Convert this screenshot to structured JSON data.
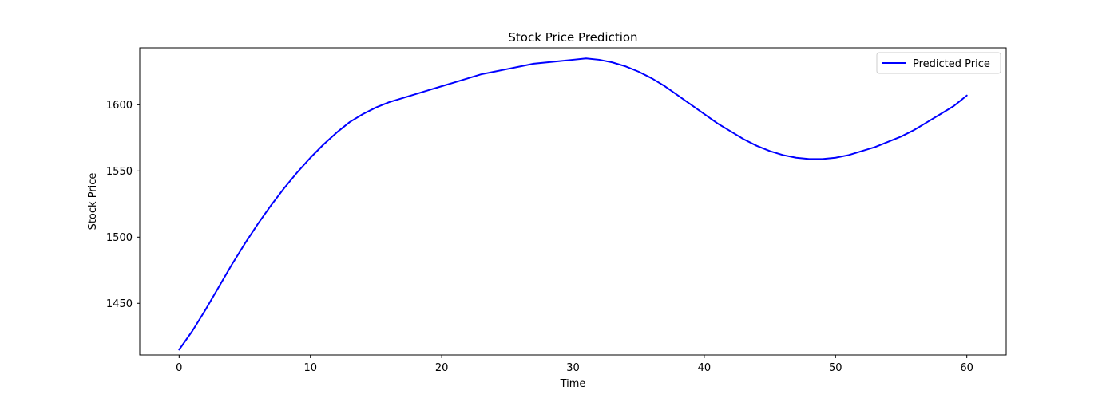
{
  "chart_data": {
    "type": "line",
    "title": "Stock Price Prediction",
    "xlabel": "Time",
    "ylabel": "Stock Price",
    "xlim": [
      -3,
      63
    ],
    "ylim": [
      1411,
      1643
    ],
    "xticks": [
      0,
      10,
      20,
      30,
      40,
      50,
      60
    ],
    "yticks": [
      1450,
      1500,
      1550,
      1600
    ],
    "grid": false,
    "legend_position": "top-right",
    "series": [
      {
        "name": "Predicted Price",
        "color": "#0000ff",
        "x": [
          0,
          1,
          2,
          3,
          4,
          5,
          6,
          7,
          8,
          9,
          10,
          11,
          12,
          13,
          14,
          15,
          16,
          17,
          18,
          19,
          20,
          21,
          22,
          23,
          24,
          25,
          26,
          27,
          28,
          29,
          30,
          31,
          32,
          33,
          34,
          35,
          36,
          37,
          38,
          39,
          40,
          41,
          42,
          43,
          44,
          45,
          46,
          47,
          48,
          49,
          50,
          51,
          52,
          53,
          54,
          55,
          56,
          57,
          58,
          59,
          60
        ],
        "values": [
          1415,
          1429,
          1445,
          1462,
          1479,
          1495,
          1510,
          1524,
          1537,
          1549,
          1560,
          1570,
          1579,
          1587,
          1593,
          1598,
          1602,
          1605,
          1608,
          1611,
          1614,
          1617,
          1620,
          1623,
          1625,
          1627,
          1629,
          1631,
          1632,
          1633,
          1634,
          1635,
          1634,
          1632,
          1629,
          1625,
          1620,
          1614,
          1607,
          1600,
          1593,
          1586,
          1580,
          1574,
          1569,
          1565,
          1562,
          1560,
          1559,
          1559,
          1560,
          1562,
          1565,
          1568,
          1572,
          1576,
          1581,
          1587,
          1593,
          1599,
          1607
        ]
      }
    ]
  }
}
